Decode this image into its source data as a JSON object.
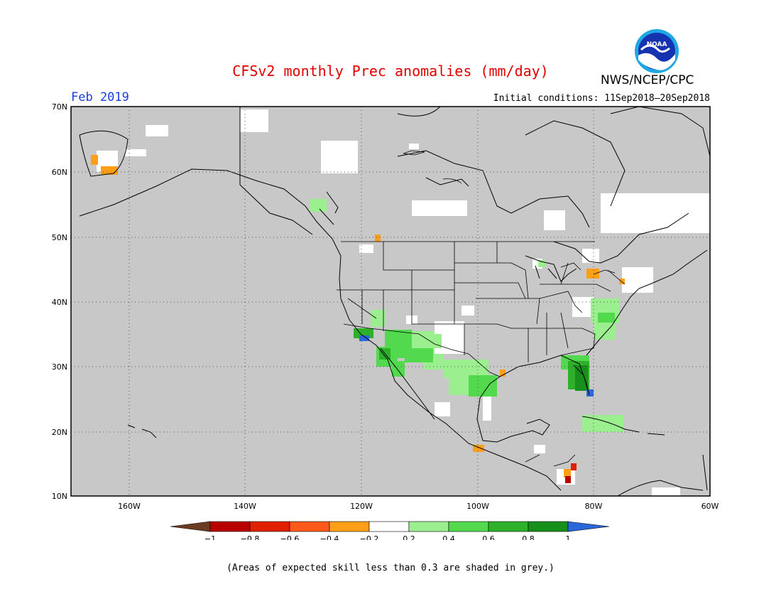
{
  "header": {
    "title": "CFSv2 monthly Prec anomalies (mm/day)",
    "month": "Feb 2019",
    "initial_conditions": "Initial conditions: 11Sep2018–20Sep2018",
    "agency": "NWS/NCEP/CPC",
    "logo_text": "NOAA"
  },
  "map": {
    "lat_labels": [
      "70N",
      "60N",
      "50N",
      "40N",
      "30N",
      "20N",
      "10N"
    ],
    "lon_labels": [
      "160W",
      "140W",
      "120W",
      "100W",
      "80W",
      "60W"
    ],
    "extent": {
      "lon_min": -172,
      "lon_max": -60,
      "lat_min": 10,
      "lat_max": 70
    },
    "skill_mask_color": "#c8c8c8"
  },
  "legend": {
    "tick_labels": [
      "−1",
      "−0.8",
      "−0.6",
      "−0.4",
      "−0.2",
      "0.2",
      "0.4",
      "0.6",
      "0.8",
      "1"
    ],
    "colors": [
      "#6b3b22",
      "#b80000",
      "#e02000",
      "#ff5a1a",
      "#ff9f17",
      "#ffffff",
      "#9cef8e",
      "#52d94e",
      "#2fb02b",
      "#16901a",
      "#2a67d8"
    ]
  },
  "footnote": "(Areas of expected skill less than 0.3 are shaded in grey.)"
}
